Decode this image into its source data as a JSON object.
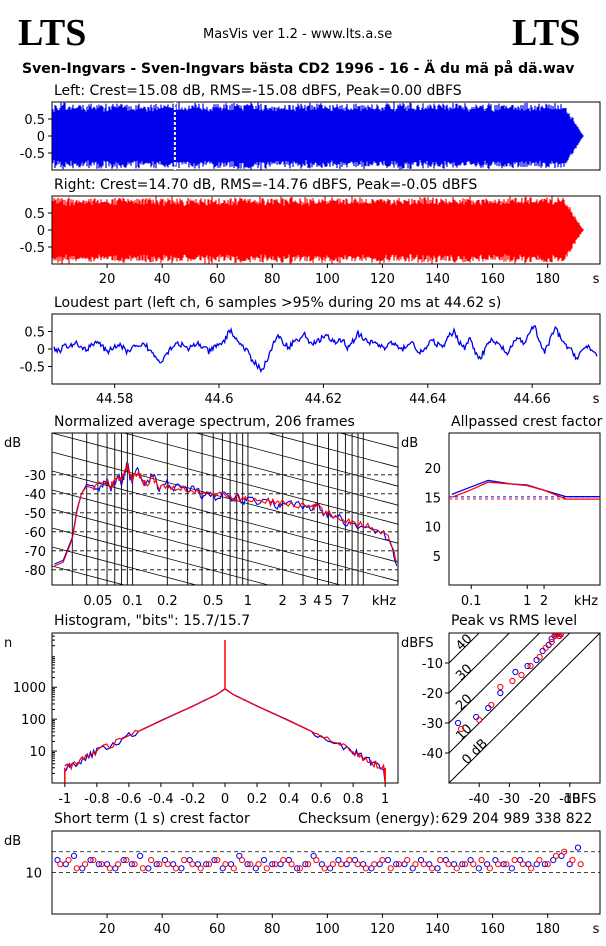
{
  "header": {
    "logo_left": "LTS",
    "logo_right": "LTS",
    "app_version": "MasVis ver 1.2 - www.lts.a.se",
    "track_title": "Sven-Ingvars - Sven-Ingvars bästa CD2 1996 - 16 - Ä du mä på dä.wav"
  },
  "colors": {
    "left": "#0000ee",
    "right": "#ff0000",
    "axis": "#000000"
  },
  "chart_data": [
    {
      "id": "left-waveform",
      "type": "area",
      "title": "Left: Crest=15.08 dB, RMS=-15.08 dBFS, Peak=0.00 dBFS",
      "channel": "left",
      "ylim": [
        -1,
        1
      ],
      "y_ticks": [
        "0.5",
        "0",
        "-0.5"
      ],
      "xlim": [
        0,
        199
      ],
      "x_ticks": [
        "20",
        "40",
        "60",
        "80",
        "100",
        "120",
        "140",
        "160",
        "180"
      ],
      "x_unit": "s",
      "envelope_end_s": 193,
      "fade_start_s": 186,
      "loudest_marker_s": 44.62
    },
    {
      "id": "right-waveform",
      "type": "area",
      "title": "Right: Crest=14.70 dB, RMS=-14.76 dBFS, Peak=-0.05 dBFS",
      "channel": "right",
      "ylim": [
        -1,
        1
      ],
      "y_ticks": [
        "0.5",
        "0",
        "-0.5"
      ],
      "xlim": [
        0,
        199
      ],
      "x_ticks": [
        "20",
        "40",
        "60",
        "80",
        "100",
        "120",
        "140",
        "160",
        "180"
      ],
      "x_unit": "s",
      "envelope_end_s": 193,
      "fade_start_s": 186
    },
    {
      "id": "loudest-part",
      "type": "line",
      "title": "Loudest part (left  ch, 6 samples >95% during 20 ms at 44.62 s)",
      "ylim": [
        -1,
        1
      ],
      "y_ticks": [
        "0.5",
        "0",
        "-0.5"
      ],
      "xlim": [
        44.568,
        44.673
      ],
      "x_ticks": [
        "44.58",
        "44.6",
        "44.62",
        "44.64",
        "44.66"
      ],
      "x_unit": "s",
      "series": [
        {
          "name": "left",
          "y": [
            0.02,
            -0.06,
            0.1,
            0.05,
            0.18,
            0.09,
            -0.05,
            0.14,
            0.22,
            0.08,
            -0.12,
            0.05,
            0.12,
            0.02,
            -0.1,
            0.06,
            0.03,
            0.15,
            -0.05,
            -0.22,
            -0.35,
            -0.15,
            0.05,
            0.18,
            0.12,
            -0.02,
            0.08,
            0.16,
            0.05,
            -0.08,
            0.04,
            0.1,
            0.25,
            0.55,
            0.32,
            0.12,
            0.0,
            -0.3,
            -0.45,
            -0.6,
            -0.3,
            0.1,
            0.35,
            0.2,
            0.05,
            0.22,
            0.28,
            0.4,
            0.2,
            0.15,
            0.3,
            0.4,
            0.22,
            0.18,
            0.28,
            0.05,
            0.22,
            0.45,
            0.3,
            0.15,
            0.22,
            0.1,
            0.02,
            0.18,
            0.12,
            -0.05,
            0.1,
            0.2,
            0.0,
            -0.12,
            0.08,
            0.25,
            0.12,
            0.05,
            0.35,
            0.5,
            0.2,
            0.05,
            0.3,
            -0.1,
            -0.25,
            0.05,
            0.25,
            0.15,
            0.05,
            -0.15,
            0.1,
            0.35,
            0.15,
            0.4,
            0.7,
            0.2,
            -0.1,
            0.25,
            0.6,
            0.3,
            0.1,
            -0.05,
            -0.25,
            -0.05,
            0.1,
            -0.1,
            -0.28
          ]
        }
      ]
    },
    {
      "id": "spectrum",
      "type": "line",
      "title": "Normalized average spectrum, 206 frames",
      "ylabel": "dB",
      "ylim": [
        -88,
        -8
      ],
      "y_ticks": [
        "-30",
        "-40",
        "-50",
        "-60",
        "-70",
        "-80"
      ],
      "x_scale": "log",
      "xlim": [
        0.02,
        20
      ],
      "x_ticks": [
        "0.05",
        "0.1",
        "0.2",
        "0.5",
        "1",
        "2",
        "3",
        "4",
        "5",
        "7"
      ],
      "x_unit": "kHz",
      "series": [
        {
          "name": "left",
          "x": [
            0.021,
            0.025,
            0.03,
            0.033,
            0.036,
            0.04,
            0.045,
            0.05,
            0.055,
            0.06,
            0.065,
            0.07,
            0.075,
            0.08,
            0.085,
            0.09,
            0.095,
            0.1,
            0.11,
            0.12,
            0.13,
            0.15,
            0.17,
            0.2,
            0.22,
            0.25,
            0.3,
            0.35,
            0.4,
            0.45,
            0.5,
            0.6,
            0.7,
            0.8,
            0.9,
            1,
            1.2,
            1.5,
            1.8,
            2,
            2.5,
            3,
            3.5,
            4,
            4.5,
            5,
            6,
            7,
            8,
            10,
            12,
            15,
            18,
            20
          ],
          "y": [
            -77,
            -75,
            -63,
            -48,
            -40,
            -35,
            -36,
            -37,
            -35,
            -33,
            -37,
            -34,
            -29,
            -35,
            -30,
            -24,
            -31,
            -33,
            -27,
            -33,
            -36,
            -30,
            -38,
            -34,
            -38,
            -35,
            -39,
            -37,
            -41,
            -38,
            -42,
            -40,
            -43,
            -41,
            -44,
            -42,
            -44,
            -43,
            -46,
            -44,
            -45,
            -47,
            -48,
            -46,
            -50,
            -51,
            -52,
            -55,
            -56,
            -57,
            -59,
            -61,
            -68,
            -82
          ]
        },
        {
          "name": "right",
          "x": [
            0.021,
            0.025,
            0.03,
            0.033,
            0.036,
            0.04,
            0.045,
            0.05,
            0.055,
            0.06,
            0.065,
            0.07,
            0.075,
            0.08,
            0.085,
            0.09,
            0.095,
            0.1,
            0.11,
            0.12,
            0.13,
            0.15,
            0.17,
            0.2,
            0.22,
            0.25,
            0.3,
            0.35,
            0.4,
            0.45,
            0.5,
            0.6,
            0.7,
            0.8,
            0.9,
            1,
            1.2,
            1.5,
            1.8,
            2,
            2.5,
            3,
            3.5,
            4,
            4.5,
            5,
            6,
            7,
            8,
            10,
            12,
            15,
            18,
            20
          ],
          "y": [
            -78,
            -76,
            -64,
            -49,
            -40,
            -36,
            -37,
            -36,
            -34,
            -34,
            -36,
            -33,
            -31,
            -33,
            -29,
            -25,
            -30,
            -32,
            -28,
            -32,
            -35,
            -31,
            -37,
            -35,
            -37,
            -36,
            -38,
            -38,
            -40,
            -39,
            -41,
            -41,
            -42,
            -42,
            -43,
            -43,
            -44,
            -44,
            -45,
            -45,
            -46,
            -46,
            -47,
            -47,
            -49,
            -50,
            -52,
            -54,
            -55,
            -57,
            -58,
            -60,
            -67,
            -81
          ]
        }
      ]
    },
    {
      "id": "allpassed-crest",
      "type": "line",
      "title": "Allpassed crest factor",
      "ylabel": "dB",
      "ylim": [
        0,
        26
      ],
      "y_ticks": [
        "20",
        "15",
        "10",
        "5"
      ],
      "x_scale": "log",
      "xlim": [
        0.04,
        20
      ],
      "x_ticks": [
        "0.1",
        "1",
        "2"
      ],
      "x_unit": "kHz",
      "reference_lines": [
        15.08,
        14.7
      ],
      "series": [
        {
          "name": "left",
          "x": [
            0.045,
            0.1,
            0.2,
            0.5,
            1,
            2,
            5,
            20
          ],
          "y": [
            15.5,
            16.8,
            17.9,
            17.3,
            17.1,
            16.2,
            15.1,
            15.1
          ]
        },
        {
          "name": "right",
          "x": [
            0.045,
            0.1,
            0.2,
            0.5,
            1,
            2,
            5,
            20
          ],
          "y": [
            15.0,
            16.3,
            17.6,
            17.3,
            17.0,
            16.2,
            14.7,
            14.7
          ]
        }
      ]
    },
    {
      "id": "histogram",
      "type": "line",
      "title": "Histogram, \"bits\": 15.7/15.7",
      "ylabel": "n",
      "y_scale": "log",
      "ylim": [
        1,
        50000
      ],
      "y_ticks": [
        "1000",
        "100",
        "10"
      ],
      "xlim": [
        -1.08,
        1.08
      ],
      "x_ticks": [
        "-1",
        "-0.8",
        "-0.6",
        "-0.4",
        "-0.2",
        "0",
        "0.2",
        "0.4",
        "0.6",
        "0.8",
        "1"
      ],
      "series": [
        {
          "name": "left",
          "x": [
            -1.0,
            -0.9,
            -0.8,
            -0.6,
            -0.4,
            -0.2,
            -0.05,
            0,
            0.05,
            0.2,
            0.4,
            0.6,
            0.8,
            0.9,
            1.0
          ],
          "y": [
            3,
            5,
            10,
            30,
            90,
            260,
            600,
            900,
            600,
            260,
            90,
            30,
            10,
            5,
            3
          ]
        },
        {
          "name": "right",
          "x": [
            -1.0,
            -0.9,
            -0.8,
            -0.6,
            -0.4,
            -0.2,
            -0.05,
            0,
            0.05,
            0.2,
            0.4,
            0.6,
            0.8,
            0.9,
            1.0
          ],
          "y": [
            3,
            5,
            10,
            30,
            88,
            255,
            590,
            880,
            590,
            255,
            88,
            30,
            10,
            5,
            3
          ]
        }
      ],
      "zero_spike": 30000
    },
    {
      "id": "peak-vs-rms",
      "type": "scatter",
      "title": "Peak vs RMS level",
      "ylabel": "dBFS",
      "xlabel": "dBFS",
      "xlim": [
        -50,
        0
      ],
      "ylim": [
        -50,
        0
      ],
      "x_ticks": [
        "-40",
        "-30",
        "-20",
        "-10"
      ],
      "y_ticks": [
        "-10",
        "-20",
        "-30",
        "-40"
      ],
      "crest_lines": [
        "40",
        "30",
        "20",
        "10",
        "0 dB"
      ],
      "series": [
        {
          "name": "left",
          "x": [
            -47,
            -41,
            -37,
            -33,
            -28,
            -24,
            -21,
            -19,
            -17,
            -16,
            -15,
            -14.5,
            -14,
            -13.5,
            -13
          ],
          "y": [
            -30,
            -28,
            -25,
            -20,
            -13,
            -11,
            -9,
            -6,
            -4,
            -2,
            -1,
            -0.5,
            0,
            -1,
            -0.2
          ]
        },
        {
          "name": "right",
          "x": [
            -46,
            -40,
            -36,
            -33,
            -29,
            -26,
            -23,
            -20,
            -18,
            -16,
            -15,
            -14.5,
            -14,
            -13.5,
            -13
          ],
          "y": [
            -32,
            -29,
            -24,
            -18,
            -16,
            -14,
            -11,
            -8,
            -5,
            -3,
            -1,
            0,
            -0.3,
            -1,
            -0.5
          ]
        }
      ]
    },
    {
      "id": "short-term-crest",
      "type": "scatter",
      "title": "Short term (1 s) crest factor",
      "checksum_label": "Checksum (energy):",
      "checksum_value": "629 204 989 338 822",
      "ylabel": "dB",
      "ylim": [
        0,
        20
      ],
      "y_ticks": [
        "10"
      ],
      "reference_lines": [
        15,
        10
      ],
      "xlim": [
        0,
        199
      ],
      "x_ticks": [
        "20",
        "40",
        "60",
        "80",
        "100",
        "120",
        "140",
        "160",
        "180"
      ],
      "x_unit": "s",
      "series": [
        {
          "name": "left",
          "x": [
            2,
            5,
            8,
            11,
            14,
            17,
            20,
            23,
            26,
            29,
            32,
            35,
            38,
            41,
            44,
            47,
            50,
            53,
            56,
            59,
            62,
            65,
            68,
            71,
            74,
            77,
            80,
            83,
            86,
            89,
            92,
            95,
            98,
            101,
            104,
            107,
            110,
            113,
            116,
            119,
            122,
            125,
            128,
            131,
            134,
            137,
            140,
            143,
            146,
            149,
            152,
            155,
            158,
            161,
            164,
            167,
            170,
            173,
            176,
            179,
            182,
            185,
            188,
            191
          ],
          "y": [
            13,
            12,
            14,
            11,
            13,
            12,
            12,
            11,
            13,
            12,
            14,
            11,
            12,
            13,
            12,
            11,
            13,
            12,
            12,
            13,
            11,
            12,
            14,
            12,
            11,
            13,
            12,
            12,
            13,
            11,
            12,
            14,
            12,
            11,
            13,
            12,
            13,
            12,
            11,
            12,
            13,
            12,
            12,
            11,
            13,
            12,
            11,
            13,
            12,
            12,
            13,
            11,
            12,
            13,
            12,
            11,
            13,
            12,
            12,
            12,
            13,
            14,
            12,
            16
          ]
        },
        {
          "name": "right",
          "x": [
            3,
            6,
            9,
            12,
            15,
            18,
            21,
            24,
            27,
            30,
            33,
            36,
            39,
            42,
            45,
            48,
            51,
            54,
            57,
            60,
            63,
            66,
            69,
            72,
            75,
            78,
            81,
            84,
            87,
            90,
            93,
            96,
            99,
            102,
            105,
            108,
            111,
            114,
            117,
            120,
            123,
            126,
            129,
            132,
            135,
            138,
            141,
            144,
            147,
            150,
            153,
            156,
            159,
            162,
            165,
            168,
            171,
            174,
            177,
            180,
            183,
            186,
            189,
            192
          ],
          "y": [
            12,
            13,
            11,
            12,
            13,
            12,
            11,
            12,
            13,
            12,
            11,
            13,
            12,
            12,
            11,
            13,
            12,
            11,
            12,
            13,
            12,
            11,
            13,
            12,
            12,
            11,
            12,
            13,
            12,
            11,
            12,
            13,
            11,
            12,
            12,
            13,
            12,
            11,
            12,
            13,
            11,
            12,
            13,
            12,
            12,
            11,
            13,
            12,
            11,
            12,
            12,
            13,
            11,
            12,
            12,
            13,
            12,
            11,
            13,
            12,
            14,
            15,
            13,
            12
          ]
        }
      ]
    }
  ]
}
